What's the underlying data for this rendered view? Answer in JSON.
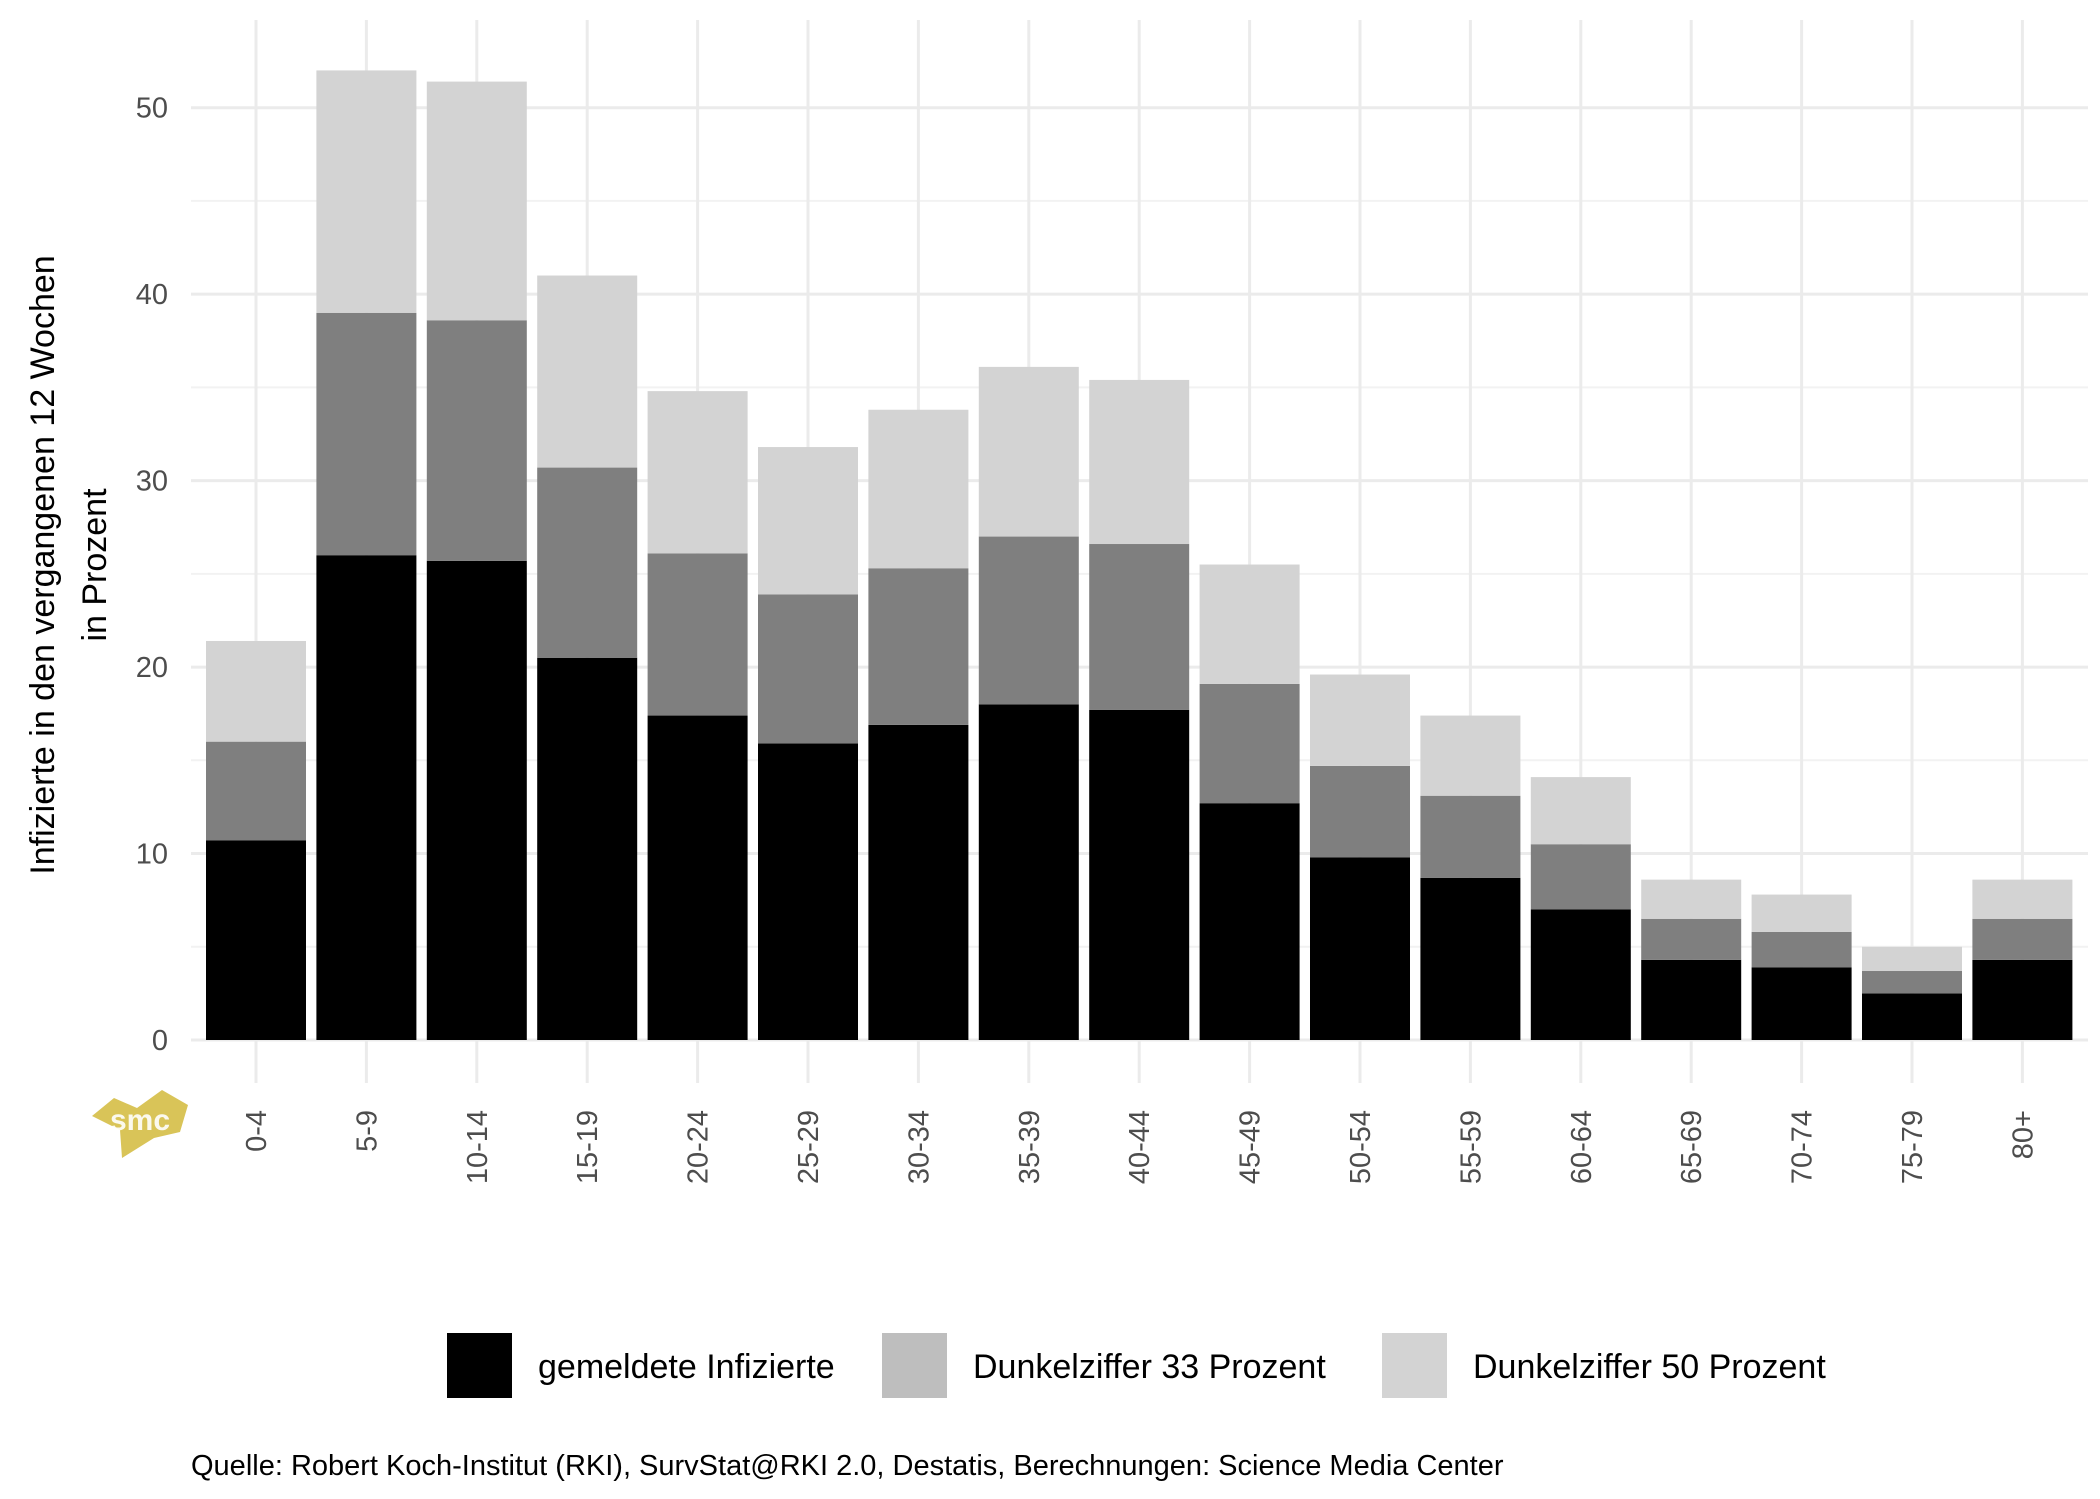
{
  "chart_data": {
    "type": "bar",
    "stacked": true,
    "title": "",
    "xlabel": "",
    "ylabel_lines": [
      "Infizierte in den vergangenen 12 Wochen",
      "in Prozent"
    ],
    "ylim": [
      0,
      52
    ],
    "yticks": [
      0,
      10,
      20,
      30,
      40,
      50
    ],
    "grid": true,
    "legend_position": "bottom",
    "categories": [
      "0-4",
      "5-9",
      "10-14",
      "15-19",
      "20-24",
      "25-29",
      "30-34",
      "35-39",
      "40-44",
      "45-49",
      "50-54",
      "55-59",
      "60-64",
      "65-69",
      "70-74",
      "75-79",
      "80+"
    ],
    "series": [
      {
        "name": "gemeldete Infizierte",
        "color": "#000000",
        "legend_color": "#000000",
        "values": [
          10.7,
          26.0,
          25.7,
          20.5,
          17.4,
          15.9,
          16.9,
          18.0,
          17.7,
          12.7,
          9.8,
          8.7,
          7.0,
          4.3,
          3.9,
          2.5,
          4.3
        ]
      },
      {
        "name": "Dunkelziffer 33 Prozent",
        "color": "#7f7f7f",
        "legend_color": "#bebebe",
        "values": [
          5.3,
          13.0,
          12.9,
          10.2,
          8.7,
          8.0,
          8.4,
          9.0,
          8.9,
          6.4,
          4.9,
          4.4,
          3.5,
          2.2,
          1.9,
          1.2,
          2.2
        ]
      },
      {
        "name": "Dunkelziffer 50 Prozent",
        "color": "#d3d3d3",
        "legend_color": "#d3d3d3",
        "values": [
          5.4,
          13.0,
          12.8,
          10.3,
          8.7,
          7.9,
          8.5,
          9.1,
          8.8,
          6.4,
          4.9,
          4.3,
          3.6,
          2.1,
          2.0,
          1.3,
          2.1
        ]
      }
    ],
    "caption": "Quelle: Robert Koch-Institut (RKI), SurvStat@RKI 2.0, Destatis, Berechnungen: Science Media Center"
  },
  "logo": {
    "text": "smc",
    "color": "#d9c458"
  }
}
